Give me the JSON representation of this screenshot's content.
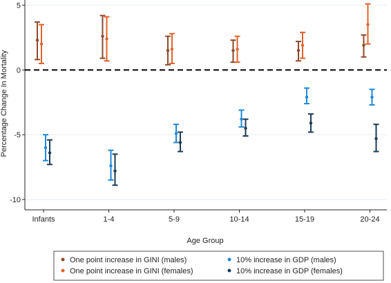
{
  "chart_data": {
    "type": "scatter",
    "title": "",
    "xlabel": "Age Group",
    "ylabel": "Percentage Change In Mortality",
    "categories": [
      "Infants",
      "1-4",
      "5-9",
      "10-14",
      "15-19",
      "20-24"
    ],
    "ylim": [
      -10.8,
      5.4
    ],
    "yticks": [
      5,
      0,
      -5,
      -10
    ],
    "reference_line": 0,
    "grid": true,
    "legend_position": "bottom",
    "series": [
      {
        "name": "One point increase in GINI (males)",
        "color": "#8B4A2B",
        "points": [
          {
            "est": 2.3,
            "lo": 0.8,
            "hi": 3.7
          },
          {
            "est": 2.6,
            "lo": 0.9,
            "hi": 4.2
          },
          {
            "est": 1.5,
            "lo": 0.4,
            "hi": 2.6
          },
          {
            "est": 1.5,
            "lo": 0.6,
            "hi": 2.3
          },
          {
            "est": 1.5,
            "lo": 0.7,
            "hi": 2.2
          },
          {
            "est": 1.9,
            "lo": 1.0,
            "hi": 2.7
          }
        ]
      },
      {
        "name": "One point increase in GINI (females)",
        "color": "#E0632B",
        "points": [
          {
            "est": 2.0,
            "lo": 0.5,
            "hi": 3.5
          },
          {
            "est": 2.4,
            "lo": 0.7,
            "hi": 4.1
          },
          {
            "est": 1.6,
            "lo": 0.5,
            "hi": 2.8
          },
          {
            "est": 1.6,
            "lo": 0.6,
            "hi": 2.6
          },
          {
            "est": 1.9,
            "lo": 0.9,
            "hi": 2.9
          },
          {
            "est": 3.5,
            "lo": 2.0,
            "hi": 5.1
          }
        ]
      },
      {
        "name": "10% increase in GDP (males)",
        "color": "#1E88D8",
        "points": [
          {
            "est": -6.0,
            "lo": -7.0,
            "hi": -5.0
          },
          {
            "est": -7.4,
            "lo": -8.5,
            "hi": -6.2
          },
          {
            "est": -4.9,
            "lo": -5.6,
            "hi": -4.2
          },
          {
            "est": -3.8,
            "lo": -4.4,
            "hi": -3.1
          },
          {
            "est": -2.1,
            "lo": -2.6,
            "hi": -1.4
          },
          {
            "est": -2.1,
            "lo": -2.7,
            "hi": -1.5
          }
        ]
      },
      {
        "name": "10% increase in GDP (females)",
        "color": "#1B3A57",
        "points": [
          {
            "est": -6.4,
            "lo": -7.3,
            "hi": -5.4
          },
          {
            "est": -7.8,
            "lo": -8.9,
            "hi": -6.5
          },
          {
            "est": -5.6,
            "lo": -6.3,
            "hi": -4.8
          },
          {
            "est": -4.5,
            "lo": -5.1,
            "hi": -3.8
          },
          {
            "est": -4.1,
            "lo": -4.8,
            "hi": -3.4
          },
          {
            "est": -5.3,
            "lo": -6.3,
            "hi": -4.2
          }
        ]
      }
    ]
  }
}
